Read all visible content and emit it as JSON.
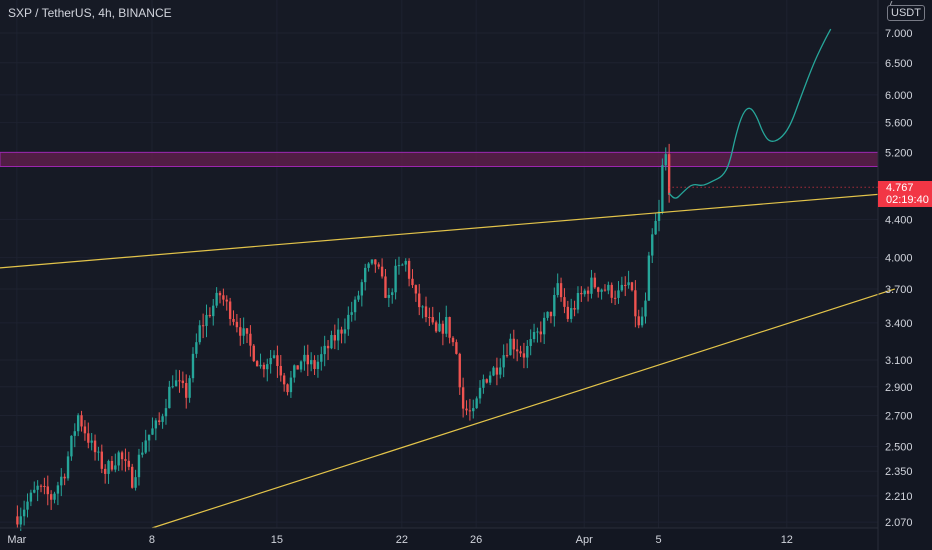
{
  "title": "SXP / TetherUS, 4h, BINANCE",
  "currency": "USDT",
  "price_axis_top_label": "7",
  "last_price": "4.767",
  "countdown": "02:19:40",
  "colors": {
    "background": "#131722",
    "up": "#26a69a",
    "down": "#ef5350",
    "trendline": "#e3c44a",
    "zone_fill": "#5c1f4a",
    "zone_border": "#9c27b0",
    "projection": "#26a69a",
    "last_price_tag": "#f23645"
  },
  "icons": [
    "price-tag-icon"
  ],
  "chart_data": {
    "type": "candlestick",
    "symbol": "SXP / TetherUS",
    "interval": "4h",
    "exchange": "BINANCE",
    "price_scale": "log",
    "ylim": [
      2.04,
      7.6
    ],
    "yticks": [
      "7.000",
      "6.500",
      "6.000",
      "5.600",
      "5.200",
      "4.400",
      "4.000",
      "3.700",
      "3.400",
      "3.100",
      "2.900",
      "2.700",
      "2.500",
      "2.350",
      "2.210",
      "2.070"
    ],
    "ytick_values": [
      7.0,
      6.5,
      6.0,
      5.6,
      5.2,
      4.4,
      4.0,
      3.7,
      3.4,
      3.1,
      2.9,
      2.7,
      2.5,
      2.35,
      2.21,
      2.07
    ],
    "xticks": [
      "Mar",
      "8",
      "15",
      "22",
      "26",
      "Apr",
      "5",
      "12"
    ],
    "xtick_bars": [
      0,
      40,
      77,
      114,
      136,
      168,
      190,
      228
    ],
    "xrange_bars": [
      -5,
      255
    ],
    "last_price": 4.767,
    "resistance_zone": [
      5.02,
      5.2
    ],
    "trendlines": [
      {
        "name": "upper",
        "points": [
          [
            -5,
            3.9
          ],
          [
            260,
            4.7
          ]
        ]
      },
      {
        "name": "lower",
        "points": [
          [
            40,
            2.04
          ],
          [
            260,
            3.7
          ]
        ]
      }
    ],
    "projection": [
      [
        193,
        4.7
      ],
      [
        195,
        4.62
      ],
      [
        197,
        4.7
      ],
      [
        200,
        4.81
      ],
      [
        203,
        4.78
      ],
      [
        206,
        4.84
      ],
      [
        209,
        4.9
      ],
      [
        211,
        5.05
      ],
      [
        213,
        5.45
      ],
      [
        215,
        5.74
      ],
      [
        217,
        5.83
      ],
      [
        219,
        5.7
      ],
      [
        221,
        5.45
      ],
      [
        223,
        5.33
      ],
      [
        226,
        5.37
      ],
      [
        229,
        5.55
      ],
      [
        232,
        5.95
      ],
      [
        236,
        6.5
      ],
      [
        239,
        6.85
      ],
      [
        241,
        7.07
      ]
    ],
    "ohlc_anchors": [
      [
        0,
        2.1
      ],
      [
        6,
        2.25
      ],
      [
        10,
        2.2
      ],
      [
        14,
        2.35
      ],
      [
        18,
        2.7
      ],
      [
        22,
        2.5
      ],
      [
        26,
        2.35
      ],
      [
        30,
        2.45
      ],
      [
        34,
        2.3
      ],
      [
        38,
        2.55
      ],
      [
        42,
        2.65
      ],
      [
        46,
        2.95
      ],
      [
        50,
        2.85
      ],
      [
        54,
        3.35
      ],
      [
        58,
        3.55
      ],
      [
        60,
        3.65
      ],
      [
        64,
        3.45
      ],
      [
        68,
        3.25
      ],
      [
        72,
        3.05
      ],
      [
        76,
        3.15
      ],
      [
        80,
        2.9
      ],
      [
        84,
        3.1
      ],
      [
        88,
        3.05
      ],
      [
        92,
        3.2
      ],
      [
        96,
        3.35
      ],
      [
        100,
        3.55
      ],
      [
        103,
        3.85
      ],
      [
        106,
        3.95
      ],
      [
        108,
        3.75
      ],
      [
        110,
        3.6
      ],
      [
        112,
        3.85
      ],
      [
        115,
        3.95
      ],
      [
        118,
        3.6
      ],
      [
        121,
        3.45
      ],
      [
        124,
        3.3
      ],
      [
        127,
        3.4
      ],
      [
        130,
        3.15
      ],
      [
        132,
        2.75
      ],
      [
        135,
        2.7
      ],
      [
        138,
        2.95
      ],
      [
        142,
        3.05
      ],
      [
        146,
        3.25
      ],
      [
        150,
        3.15
      ],
      [
        154,
        3.3
      ],
      [
        158,
        3.5
      ],
      [
        160,
        3.7
      ],
      [
        163,
        3.45
      ],
      [
        166,
        3.6
      ],
      [
        170,
        3.75
      ],
      [
        174,
        3.7
      ],
      [
        178,
        3.65
      ],
      [
        181,
        3.75
      ],
      [
        184,
        3.35
      ],
      [
        186,
        3.55
      ],
      [
        187,
        3.95
      ],
      [
        188,
        4.2
      ],
      [
        189,
        4.35
      ],
      [
        190,
        4.45
      ],
      [
        191,
        5.0
      ],
      [
        192,
        5.15
      ],
      [
        193,
        4.77
      ]
    ]
  }
}
